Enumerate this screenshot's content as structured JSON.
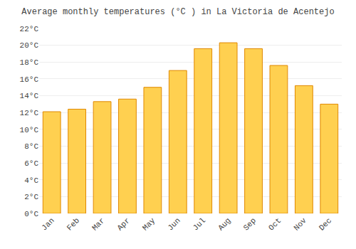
{
  "chart_data": {
    "type": "bar",
    "title": "Average monthly temperatures (°C ) in La Victoria de Acentejo",
    "categories": [
      "Jan",
      "Feb",
      "Mar",
      "Apr",
      "May",
      "Jun",
      "Jul",
      "Aug",
      "Sep",
      "Oct",
      "Nov",
      "Dec"
    ],
    "values": [
      12.1,
      12.4,
      13.3,
      13.6,
      15.0,
      17.0,
      19.6,
      20.3,
      19.6,
      17.6,
      15.2,
      13.0
    ],
    "color": "#FFD050",
    "ylim": [
      0,
      22
    ],
    "yticks": [
      {
        "value": 0,
        "label": "0°C"
      },
      {
        "value": 2,
        "label": "2°C"
      },
      {
        "value": 4,
        "label": "4°C"
      },
      {
        "value": 6,
        "label": "6°C"
      },
      {
        "value": 8,
        "label": "8°C"
      },
      {
        "value": 10,
        "label": "10°C"
      },
      {
        "value": 12,
        "label": "12°C"
      },
      {
        "value": 14,
        "label": "14°C"
      },
      {
        "value": 16,
        "label": "16°C"
      },
      {
        "value": 18,
        "label": "18°C"
      },
      {
        "value": 20,
        "label": "20°C"
      },
      {
        "value": 22,
        "label": "22°C"
      }
    ],
    "grid": true
  }
}
